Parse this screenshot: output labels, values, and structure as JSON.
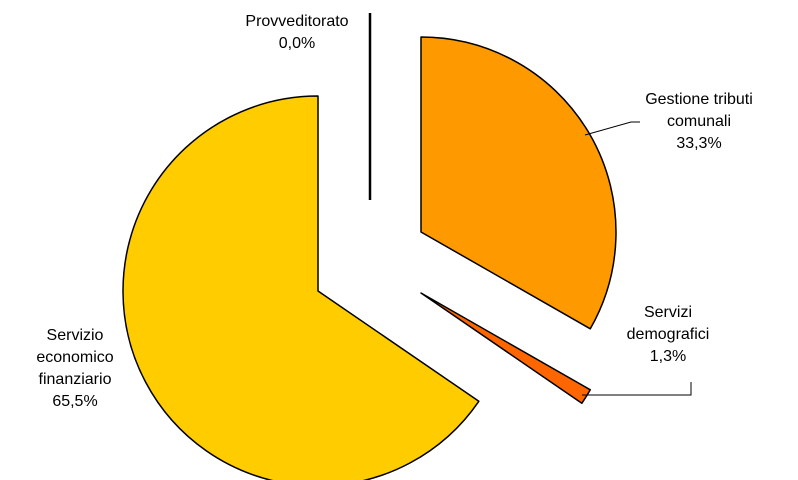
{
  "chart_data": {
    "type": "pie",
    "title": "",
    "slices": [
      {
        "category": "Gestione tributi comunali",
        "label_lines": [
          "Gestione tributi",
          "comunali"
        ],
        "value_label": "33,3%",
        "value": 33.3,
        "color": "#FF9900"
      },
      {
        "category": "Servizi demografici",
        "label_lines": [
          "Servizi",
          "demografici"
        ],
        "value_label": "1,3%",
        "value": 1.3,
        "color": "#FF6600"
      },
      {
        "category": "Servizio economico finanziario",
        "label_lines": [
          "Servizio",
          "economico",
          "finanziario"
        ],
        "value_label": "65,5%",
        "value": 65.5,
        "color": "#FFCC00"
      },
      {
        "category": "Provveditorato",
        "label_lines": [
          "Provveditorato"
        ],
        "value_label": "0,0%",
        "value": 0.0,
        "color": "#FFFFFF"
      }
    ],
    "exploded": true,
    "legend": "none"
  }
}
